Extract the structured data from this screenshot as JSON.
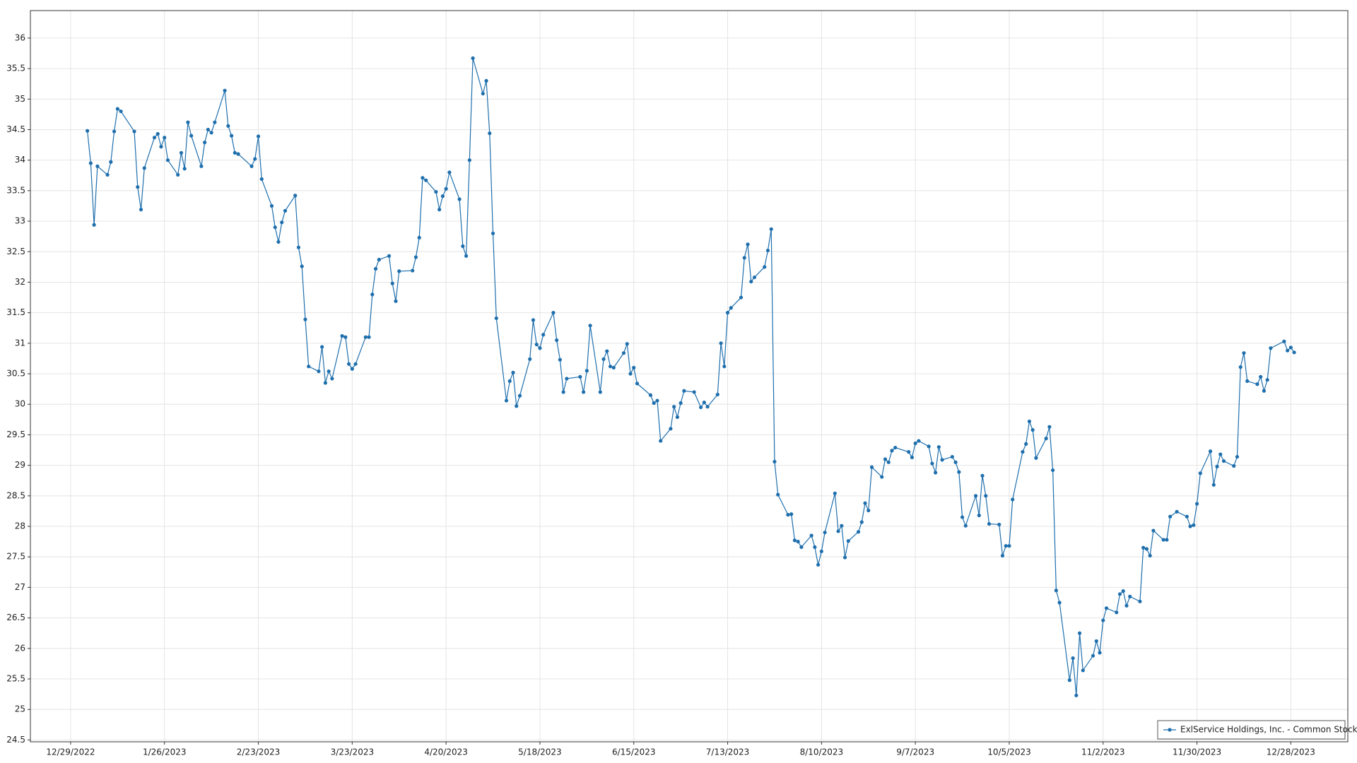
{
  "chart_data": {
    "type": "line",
    "x": [
      "2023-01-03",
      "2023-01-04",
      "2023-01-05",
      "2023-01-06",
      "2023-01-09",
      "2023-01-10",
      "2023-01-11",
      "2023-01-12",
      "2023-01-13",
      "2023-01-17",
      "2023-01-18",
      "2023-01-19",
      "2023-01-20",
      "2023-01-23",
      "2023-01-24",
      "2023-01-25",
      "2023-01-26",
      "2023-01-27",
      "2023-01-30",
      "2023-01-31",
      "2023-02-01",
      "2023-02-02",
      "2023-02-03",
      "2023-02-06",
      "2023-02-07",
      "2023-02-08",
      "2023-02-09",
      "2023-02-10",
      "2023-02-13",
      "2023-02-14",
      "2023-02-15",
      "2023-02-16",
      "2023-02-17",
      "2023-02-21",
      "2023-02-22",
      "2023-02-23",
      "2023-02-24",
      "2023-02-27",
      "2023-02-28",
      "2023-03-01",
      "2023-03-02",
      "2023-03-03",
      "2023-03-06",
      "2023-03-07",
      "2023-03-08",
      "2023-03-09",
      "2023-03-10",
      "2023-03-13",
      "2023-03-14",
      "2023-03-15",
      "2023-03-16",
      "2023-03-17",
      "2023-03-20",
      "2023-03-21",
      "2023-03-22",
      "2023-03-23",
      "2023-03-24",
      "2023-03-27",
      "2023-03-28",
      "2023-03-29",
      "2023-03-30",
      "2023-03-31",
      "2023-04-03",
      "2023-04-04",
      "2023-04-05",
      "2023-04-06",
      "2023-04-10",
      "2023-04-11",
      "2023-04-12",
      "2023-04-13",
      "2023-04-14",
      "2023-04-17",
      "2023-04-18",
      "2023-04-19",
      "2023-04-20",
      "2023-04-21",
      "2023-04-24",
      "2023-04-25",
      "2023-04-26",
      "2023-04-27",
      "2023-04-28",
      "2023-05-01",
      "2023-05-02",
      "2023-05-03",
      "2023-05-04",
      "2023-05-05",
      "2023-05-08",
      "2023-05-09",
      "2023-05-10",
      "2023-05-11",
      "2023-05-12",
      "2023-05-15",
      "2023-05-16",
      "2023-05-17",
      "2023-05-18",
      "2023-05-19",
      "2023-05-22",
      "2023-05-23",
      "2023-05-24",
      "2023-05-25",
      "2023-05-26",
      "2023-05-30",
      "2023-05-31",
      "2023-06-01",
      "2023-06-02",
      "2023-06-05",
      "2023-06-06",
      "2023-06-07",
      "2023-06-08",
      "2023-06-09",
      "2023-06-12",
      "2023-06-13",
      "2023-06-14",
      "2023-06-15",
      "2023-06-16",
      "2023-06-20",
      "2023-06-21",
      "2023-06-22",
      "2023-06-23",
      "2023-06-26",
      "2023-06-27",
      "2023-06-28",
      "2023-06-29",
      "2023-06-30",
      "2023-07-03",
      "2023-07-05",
      "2023-07-06",
      "2023-07-07",
      "2023-07-10",
      "2023-07-11",
      "2023-07-12",
      "2023-07-13",
      "2023-07-14",
      "2023-07-17",
      "2023-07-18",
      "2023-07-19",
      "2023-07-20",
      "2023-07-21",
      "2023-07-24",
      "2023-07-25",
      "2023-07-26",
      "2023-07-27",
      "2023-07-28",
      "2023-07-31",
      "2023-08-01",
      "2023-08-02",
      "2023-08-03",
      "2023-08-04",
      "2023-08-07",
      "2023-08-08",
      "2023-08-09",
      "2023-08-10",
      "2023-08-11",
      "2023-08-14",
      "2023-08-15",
      "2023-08-16",
      "2023-08-17",
      "2023-08-18",
      "2023-08-21",
      "2023-08-22",
      "2023-08-23",
      "2023-08-24",
      "2023-08-25",
      "2023-08-28",
      "2023-08-29",
      "2023-08-30",
      "2023-08-31",
      "2023-09-01",
      "2023-09-05",
      "2023-09-06",
      "2023-09-07",
      "2023-09-08",
      "2023-09-11",
      "2023-09-12",
      "2023-09-13",
      "2023-09-14",
      "2023-09-15",
      "2023-09-18",
      "2023-09-19",
      "2023-09-20",
      "2023-09-21",
      "2023-09-22",
      "2023-09-25",
      "2023-09-26",
      "2023-09-27",
      "2023-09-28",
      "2023-09-29",
      "2023-10-02",
      "2023-10-03",
      "2023-10-04",
      "2023-10-05",
      "2023-10-06",
      "2023-10-09",
      "2023-10-10",
      "2023-10-11",
      "2023-10-12",
      "2023-10-13",
      "2023-10-16",
      "2023-10-17",
      "2023-10-18",
      "2023-10-19",
      "2023-10-20",
      "2023-10-23",
      "2023-10-24",
      "2023-10-25",
      "2023-10-26",
      "2023-10-27",
      "2023-10-30",
      "2023-10-31",
      "2023-11-01",
      "2023-11-02",
      "2023-11-03",
      "2023-11-06",
      "2023-11-07",
      "2023-11-08",
      "2023-11-09",
      "2023-11-10",
      "2023-11-13",
      "2023-11-14",
      "2023-11-15",
      "2023-11-16",
      "2023-11-17",
      "2023-11-20",
      "2023-11-21",
      "2023-11-22",
      "2023-11-24",
      "2023-11-27",
      "2023-11-28",
      "2023-11-29",
      "2023-11-30",
      "2023-12-01",
      "2023-12-04",
      "2023-12-05",
      "2023-12-06",
      "2023-12-07",
      "2023-12-08",
      "2023-12-11",
      "2023-12-12",
      "2023-12-13",
      "2023-12-14",
      "2023-12-15",
      "2023-12-18",
      "2023-12-19",
      "2023-12-20",
      "2023-12-21",
      "2023-12-22",
      "2023-12-26",
      "2023-12-27",
      "2023-12-28",
      "2023-12-29"
    ],
    "series": [
      {
        "name": "ExlService Holdings, Inc. - Common Stock",
        "color": "#1f6fad",
        "values": [
          34.48,
          33.95,
          32.94,
          33.9,
          33.76,
          33.97,
          34.47,
          34.84,
          34.8,
          34.47,
          33.56,
          33.19,
          33.87,
          34.37,
          34.43,
          34.22,
          34.37,
          34.0,
          33.76,
          34.12,
          33.86,
          34.62,
          34.4,
          33.9,
          34.29,
          34.5,
          34.45,
          34.62,
          35.14,
          34.56,
          34.4,
          34.12,
          34.1,
          33.9,
          34.02,
          34.39,
          33.69,
          33.25,
          32.9,
          32.66,
          32.98,
          33.17,
          33.42,
          32.57,
          32.26,
          31.39,
          30.62,
          30.54,
          30.94,
          30.35,
          30.54,
          30.42,
          31.12,
          31.1,
          30.66,
          30.58,
          30.66,
          31.1,
          31.1,
          31.8,
          32.22,
          32.37,
          32.43,
          31.98,
          31.69,
          32.18,
          32.19,
          32.41,
          32.73,
          33.71,
          33.67,
          33.48,
          33.19,
          33.41,
          33.53,
          33.8,
          33.36,
          32.59,
          32.43,
          34.0,
          35.67,
          35.09,
          35.3,
          34.44,
          32.8,
          31.41,
          30.06,
          30.38,
          30.52,
          29.97,
          30.14,
          30.74,
          31.38,
          30.98,
          30.92,
          31.14,
          31.5,
          31.05,
          30.73,
          30.2,
          30.42,
          30.45,
          30.2,
          30.55,
          31.29,
          30.2,
          30.74,
          30.87,
          30.62,
          30.6,
          30.84,
          30.99,
          30.5,
          30.6,
          30.34,
          30.15,
          30.02,
          30.06,
          29.4,
          29.6,
          29.96,
          29.79,
          30.02,
          30.22,
          30.2,
          29.95,
          30.03,
          29.96,
          30.16,
          31.0,
          30.62,
          31.5,
          31.58,
          31.75,
          32.4,
          32.62,
          32.01,
          32.08,
          32.25,
          32.52,
          32.87,
          29.06,
          28.52,
          28.19,
          28.2,
          27.77,
          27.75,
          27.66,
          27.85,
          27.66,
          27.37,
          27.59,
          27.9,
          28.54,
          27.92,
          28.01,
          27.49,
          27.76,
          27.91,
          28.07,
          28.38,
          28.26,
          28.97,
          28.81,
          29.1,
          29.05,
          29.24,
          29.29,
          29.22,
          29.13,
          29.36,
          29.4,
          29.31,
          29.03,
          28.88,
          29.3,
          29.09,
          29.14,
          29.05,
          28.89,
          28.15,
          28.01,
          28.5,
          28.18,
          28.83,
          28.5,
          28.04,
          28.03,
          27.52,
          27.68,
          27.68,
          28.44,
          29.22,
          29.35,
          29.72,
          29.58,
          29.12,
          29.44,
          29.63,
          28.92,
          26.95,
          26.75,
          25.48,
          25.84,
          25.23,
          26.25,
          25.64,
          25.88,
          26.12,
          25.93,
          26.46,
          26.66,
          26.59,
          26.89,
          26.94,
          26.7,
          26.85,
          26.77,
          27.65,
          27.63,
          27.52,
          27.93,
          27.78,
          27.78,
          28.16,
          28.24,
          28.16,
          28.0,
          28.02,
          28.37,
          28.87,
          29.23,
          28.68,
          28.98,
          29.18,
          29.07,
          28.99,
          29.14,
          30.61,
          30.84,
          30.38,
          30.33,
          30.45,
          30.22,
          30.4,
          30.92,
          31.03,
          30.88,
          30.93,
          30.85
        ]
      }
    ],
    "xlim": [
      "2022-12-17",
      "2024-01-14"
    ],
    "xticks": [
      {
        "value": "2022-12-29",
        "label": "12/29/2022"
      },
      {
        "value": "2023-01-26",
        "label": "1/26/2023"
      },
      {
        "value": "2023-02-23",
        "label": "2/23/2023"
      },
      {
        "value": "2023-03-23",
        "label": "3/23/2023"
      },
      {
        "value": "2023-04-20",
        "label": "4/20/2023"
      },
      {
        "value": "2023-05-18",
        "label": "5/18/2023"
      },
      {
        "value": "2023-06-15",
        "label": "6/15/2023"
      },
      {
        "value": "2023-07-13",
        "label": "7/13/2023"
      },
      {
        "value": "2023-08-10",
        "label": "8/10/2023"
      },
      {
        "value": "2023-09-07",
        "label": "9/7/2023"
      },
      {
        "value": "2023-10-05",
        "label": "10/5/2023"
      },
      {
        "value": "2023-11-02",
        "label": "11/2/2023"
      },
      {
        "value": "2023-11-30",
        "label": "11/30/2023"
      },
      {
        "value": "2023-12-28",
        "label": "12/28/2023"
      }
    ],
    "ylim": [
      24.47,
      36.45
    ],
    "yticks": [
      24.5,
      25,
      25.5,
      26,
      26.5,
      27,
      27.5,
      28,
      28.5,
      29,
      29.5,
      30,
      30.5,
      31,
      31.5,
      32,
      32.5,
      33,
      33.5,
      34,
      34.5,
      35,
      35.5,
      36
    ],
    "grid": true,
    "legend": "lower right"
  }
}
